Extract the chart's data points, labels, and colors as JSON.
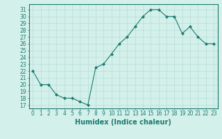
{
  "x": [
    0,
    1,
    2,
    3,
    4,
    5,
    6,
    7,
    8,
    9,
    10,
    11,
    12,
    13,
    14,
    15,
    16,
    17,
    18,
    19,
    20,
    21,
    22,
    23
  ],
  "y": [
    22,
    20,
    20,
    18.5,
    18,
    18,
    17.5,
    17,
    22.5,
    23,
    24.5,
    26,
    27,
    28.5,
    30,
    31,
    31,
    30,
    30,
    27.5,
    28.5,
    27,
    26,
    26
  ],
  "line_color": "#1a7a6e",
  "marker_color": "#1a7a6e",
  "bg_color": "#d4f0eb",
  "grid_color": "#b8ddd7",
  "xlabel": "Humidex (Indice chaleur)",
  "ylabel_ticks": [
    17,
    18,
    19,
    20,
    21,
    22,
    23,
    24,
    25,
    26,
    27,
    28,
    29,
    30,
    31
  ],
  "ylim": [
    16.5,
    31.8
  ],
  "xlim": [
    -0.5,
    23.5
  ],
  "tick_fontsize": 5.5,
  "label_fontsize": 7
}
